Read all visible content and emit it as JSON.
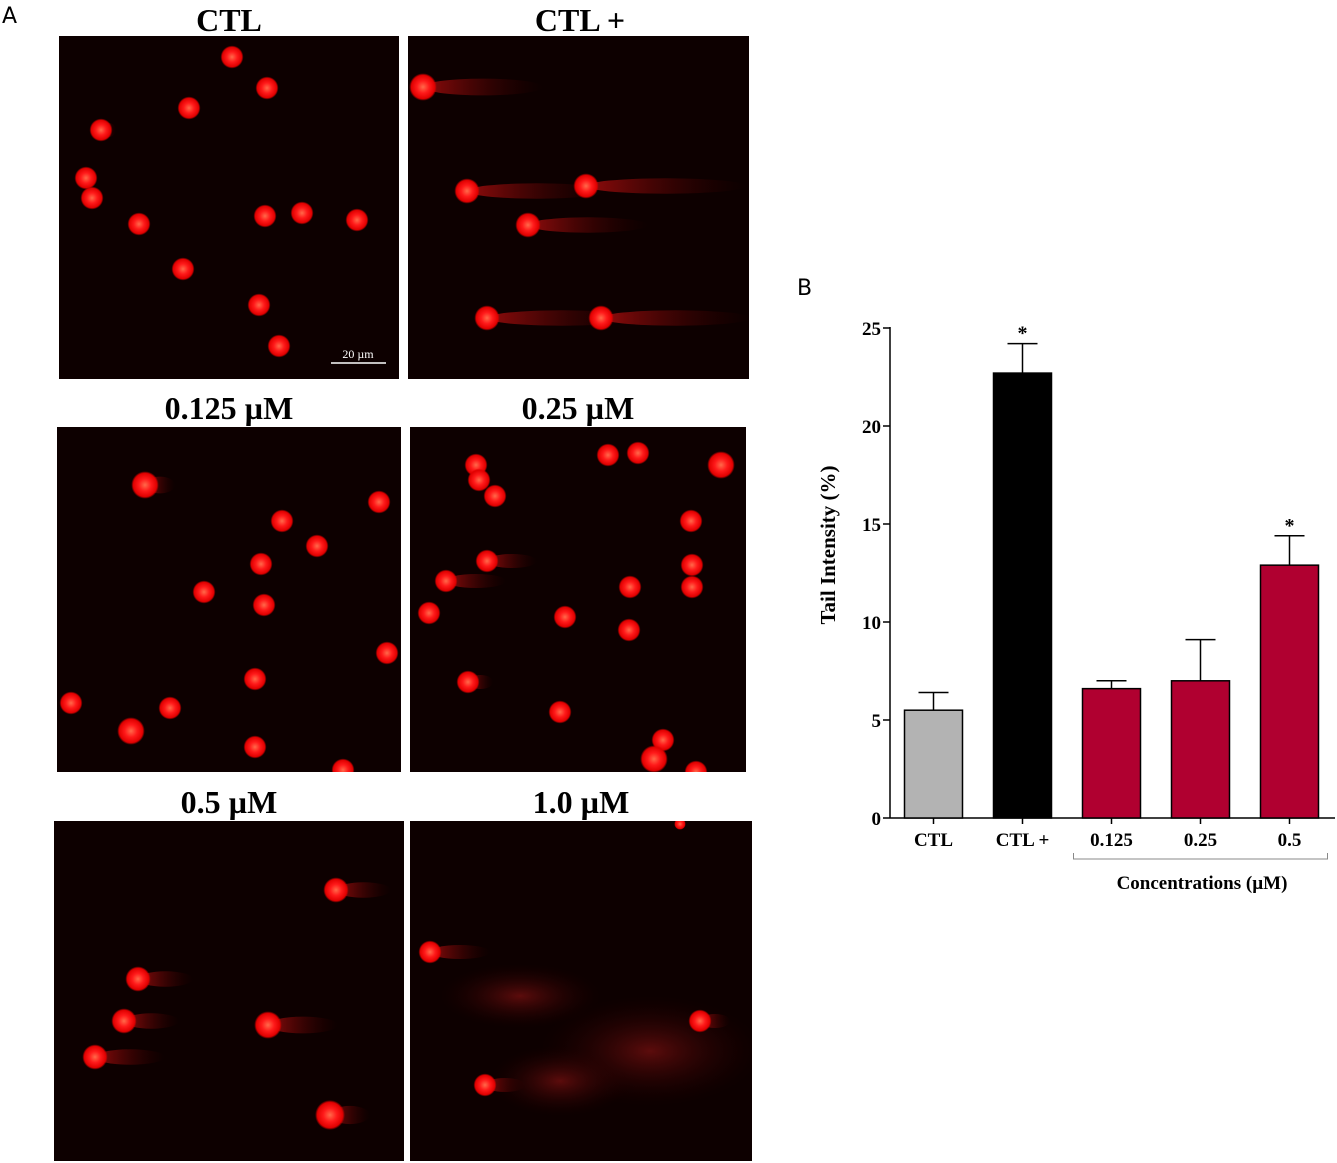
{
  "panel_a": {
    "letter": "A",
    "images": [
      {
        "title": "CTL",
        "scale_bar": "20 µm"
      },
      {
        "title": "CTL +"
      },
      {
        "title": "0.125 µM"
      },
      {
        "title": "0.25 µM"
      },
      {
        "title": "0.5 µM"
      },
      {
        "title": "1.0 µM"
      }
    ]
  },
  "panel_b": {
    "letter": "B"
  },
  "colors": {
    "ctl": "#b3b3b3",
    "ctl_plus": "#000000",
    "treatment": "#b00030",
    "nucleus": "#ff1a1a",
    "background": "#0d0000"
  },
  "chart_data": {
    "type": "bar",
    "title": "",
    "categories": [
      "CTL",
      "CTL +",
      "0.125",
      "0.25",
      "0.5"
    ],
    "values": [
      5.5,
      22.7,
      6.6,
      7.0,
      12.9
    ],
    "errors": [
      0.9,
      1.5,
      0.4,
      2.1,
      1.5
    ],
    "significant": [
      false,
      true,
      false,
      false,
      true
    ],
    "significance_marker": "*",
    "ylabel": "Tail Intensity (%)",
    "xlabel": "Concentrations (µM)",
    "ylim": [
      0,
      25
    ],
    "yticks": [
      0,
      5,
      10,
      15,
      20,
      25
    ],
    "grid": false
  }
}
